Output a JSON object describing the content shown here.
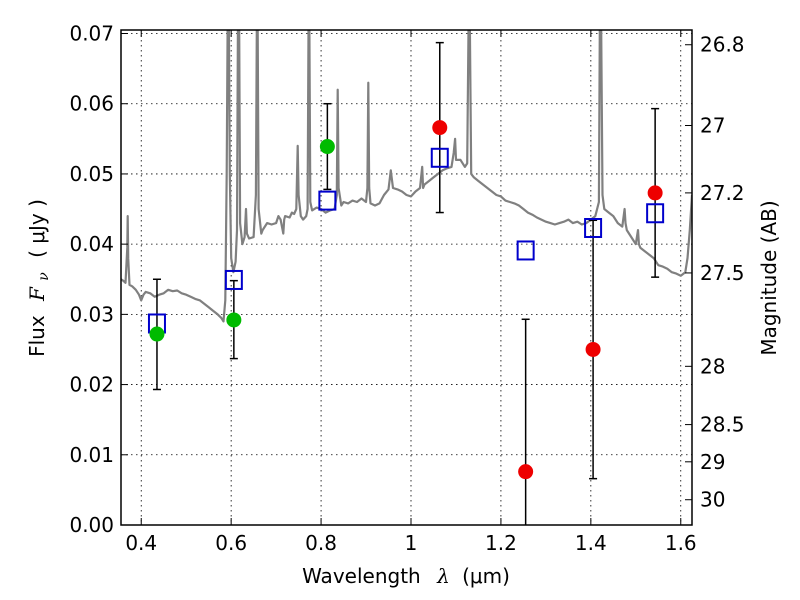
{
  "chart_data": {
    "type": "scatter",
    "title": "",
    "xlabel_text": "Wavelength",
    "xlabel_symbol": "λ",
    "xlabel_unit": "(μm)",
    "ylabel_text": "Flux",
    "ylabel_symbol": "F",
    "ylabel_sub": "ν",
    "ylabel_unit": "( μJy )",
    "y2label": "Magnitude (AB)",
    "xlim": [
      0.355,
      1.625
    ],
    "ylim": [
      0.0,
      0.0705
    ],
    "grid": true,
    "legend": "none",
    "x_ticks": [
      {
        "v": 0.4,
        "label": "0.4"
      },
      {
        "v": 0.6,
        "label": "0.6"
      },
      {
        "v": 0.8,
        "label": "0.8"
      },
      {
        "v": 1.0,
        "label": "1"
      },
      {
        "v": 1.2,
        "label": "1.2"
      },
      {
        "v": 1.4,
        "label": "1.4"
      },
      {
        "v": 1.6,
        "label": "1.6"
      }
    ],
    "y_ticks": [
      {
        "v": 0.0,
        "label": "0.00"
      },
      {
        "v": 0.01,
        "label": "0.01"
      },
      {
        "v": 0.02,
        "label": "0.02"
      },
      {
        "v": 0.03,
        "label": "0.03"
      },
      {
        "v": 0.04,
        "label": "0.04"
      },
      {
        "v": 0.05,
        "label": "0.05"
      },
      {
        "v": 0.06,
        "label": "0.06"
      },
      {
        "v": 0.07,
        "label": "0.07"
      }
    ],
    "mag_ticks": [
      {
        "label": "26.8",
        "flux": 0.0684
      },
      {
        "label": "27",
        "flux": 0.0569
      },
      {
        "label": "27.2",
        "flux": 0.0473
      },
      {
        "label": "27.5",
        "flux": 0.0359
      },
      {
        "label": "28",
        "flux": 0.0226
      },
      {
        "label": "28.5",
        "flux": 0.0143
      },
      {
        "label": "29",
        "flux": 0.009
      },
      {
        "label": "30",
        "flux": 0.0036
      }
    ],
    "template_spectrum": {
      "name": "template",
      "color": "#808080",
      "points": [
        [
          0.355,
          0.035
        ],
        [
          0.36,
          0.0348
        ],
        [
          0.365,
          0.0345
        ],
        [
          0.369,
          0.0395
        ],
        [
          0.37,
          0.044
        ],
        [
          0.371,
          0.038
        ],
        [
          0.374,
          0.0342
        ],
        [
          0.38,
          0.034
        ],
        [
          0.388,
          0.0335
        ],
        [
          0.395,
          0.0328
        ],
        [
          0.4,
          0.032
        ],
        [
          0.405,
          0.0328
        ],
        [
          0.41,
          0.0332
        ],
        [
          0.42,
          0.033
        ],
        [
          0.43,
          0.0325
        ],
        [
          0.44,
          0.0328
        ],
        [
          0.45,
          0.033
        ],
        [
          0.46,
          0.0335
        ],
        [
          0.47,
          0.0333
        ],
        [
          0.48,
          0.0334
        ],
        [
          0.49,
          0.033
        ],
        [
          0.5,
          0.0328
        ],
        [
          0.51,
          0.0325
        ],
        [
          0.52,
          0.0322
        ],
        [
          0.53,
          0.032
        ],
        [
          0.54,
          0.0315
        ],
        [
          0.55,
          0.031
        ],
        [
          0.56,
          0.0305
        ],
        [
          0.57,
          0.03
        ],
        [
          0.578,
          0.0295
        ],
        [
          0.583,
          0.029
        ],
        [
          0.587,
          0.032
        ],
        [
          0.59,
          0.05
        ],
        [
          0.592,
          0.0705
        ],
        [
          0.595,
          0.0705
        ],
        [
          0.597,
          0.05
        ],
        [
          0.6,
          0.038
        ],
        [
          0.605,
          0.036
        ],
        [
          0.61,
          0.0375
        ],
        [
          0.613,
          0.042
        ],
        [
          0.615,
          0.0705
        ],
        [
          0.618,
          0.0705
        ],
        [
          0.62,
          0.043
        ],
        [
          0.625,
          0.04
        ],
        [
          0.63,
          0.041
        ],
        [
          0.633,
          0.045
        ],
        [
          0.635,
          0.0415
        ],
        [
          0.64,
          0.0408
        ],
        [
          0.65,
          0.041
        ],
        [
          0.655,
          0.047
        ],
        [
          0.657,
          0.0705
        ],
        [
          0.659,
          0.0705
        ],
        [
          0.661,
          0.045
        ],
        [
          0.667,
          0.0415
        ],
        [
          0.67,
          0.042
        ],
        [
          0.68,
          0.043
        ],
        [
          0.69,
          0.0428
        ],
        [
          0.7,
          0.043
        ],
        [
          0.705,
          0.044
        ],
        [
          0.71,
          0.0435
        ],
        [
          0.716,
          0.0415
        ],
        [
          0.718,
          0.0435
        ],
        [
          0.72,
          0.044
        ],
        [
          0.73,
          0.0438
        ],
        [
          0.735,
          0.0445
        ],
        [
          0.74,
          0.0443
        ],
        [
          0.745,
          0.045
        ],
        [
          0.748,
          0.054
        ],
        [
          0.75,
          0.047
        ],
        [
          0.755,
          0.044
        ],
        [
          0.76,
          0.0435
        ],
        [
          0.767,
          0.044
        ],
        [
          0.77,
          0.045
        ],
        [
          0.772,
          0.0705
        ],
        [
          0.774,
          0.0705
        ],
        [
          0.776,
          0.046
        ],
        [
          0.78,
          0.0448
        ],
        [
          0.79,
          0.0452
        ],
        [
          0.8,
          0.045
        ],
        [
          0.81,
          0.0445
        ],
        [
          0.82,
          0.0448
        ],
        [
          0.83,
          0.045
        ],
        [
          0.835,
          0.047
        ],
        [
          0.837,
          0.062
        ],
        [
          0.839,
          0.048
        ],
        [
          0.845,
          0.0455
        ],
        [
          0.85,
          0.046
        ],
        [
          0.86,
          0.0458
        ],
        [
          0.87,
          0.0462
        ],
        [
          0.88,
          0.046
        ],
        [
          0.89,
          0.0465
        ],
        [
          0.9,
          0.046
        ],
        [
          0.903,
          0.048
        ],
        [
          0.905,
          0.063
        ],
        [
          0.907,
          0.048
        ],
        [
          0.91,
          0.0458
        ],
        [
          0.92,
          0.0455
        ],
        [
          0.93,
          0.0458
        ],
        [
          0.94,
          0.047
        ],
        [
          0.95,
          0.0478
        ],
        [
          0.955,
          0.0505
        ],
        [
          0.956,
          0.05
        ],
        [
          0.96,
          0.048
        ],
        [
          0.97,
          0.0478
        ],
        [
          0.98,
          0.0475
        ],
        [
          0.99,
          0.047
        ],
        [
          1.0,
          0.0468
        ],
        [
          1.01,
          0.0475
        ],
        [
          1.02,
          0.048
        ],
        [
          1.025,
          0.051
        ],
        [
          1.027,
          0.048
        ],
        [
          1.03,
          0.0485
        ],
        [
          1.04,
          0.049
        ],
        [
          1.05,
          0.0495
        ],
        [
          1.06,
          0.05
        ],
        [
          1.07,
          0.0505
        ],
        [
          1.08,
          0.0508
        ],
        [
          1.09,
          0.051
        ],
        [
          1.095,
          0.053
        ],
        [
          1.098,
          0.055
        ],
        [
          1.1,
          0.052
        ],
        [
          1.11,
          0.052
        ],
        [
          1.12,
          0.051
        ],
        [
          1.125,
          0.0515
        ],
        [
          1.128,
          0.0705
        ],
        [
          1.131,
          0.0705
        ],
        [
          1.134,
          0.05
        ],
        [
          1.14,
          0.0495
        ],
        [
          1.15,
          0.049
        ],
        [
          1.16,
          0.0485
        ],
        [
          1.17,
          0.048
        ],
        [
          1.18,
          0.0475
        ],
        [
          1.19,
          0.047
        ],
        [
          1.2,
          0.0468
        ],
        [
          1.21,
          0.0462
        ],
        [
          1.22,
          0.046
        ],
        [
          1.23,
          0.0458
        ],
        [
          1.24,
          0.0455
        ],
        [
          1.25,
          0.045
        ],
        [
          1.26,
          0.0445
        ],
        [
          1.27,
          0.0442
        ],
        [
          1.28,
          0.0438
        ],
        [
          1.29,
          0.0435
        ],
        [
          1.3,
          0.0432
        ],
        [
          1.31,
          0.043
        ],
        [
          1.32,
          0.0428
        ],
        [
          1.33,
          0.043
        ],
        [
          1.34,
          0.0432
        ],
        [
          1.35,
          0.0435
        ],
        [
          1.36,
          0.043
        ],
        [
          1.37,
          0.0432
        ],
        [
          1.38,
          0.0428
        ],
        [
          1.39,
          0.043
        ],
        [
          1.4,
          0.0435
        ],
        [
          1.41,
          0.044
        ],
        [
          1.418,
          0.046
        ],
        [
          1.42,
          0.0705
        ],
        [
          1.423,
          0.0705
        ],
        [
          1.426,
          0.047
        ],
        [
          1.43,
          0.045
        ],
        [
          1.44,
          0.0445
        ],
        [
          1.45,
          0.044
        ],
        [
          1.46,
          0.043
        ],
        [
          1.47,
          0.0425
        ],
        [
          1.475,
          0.045
        ],
        [
          1.477,
          0.043
        ],
        [
          1.48,
          0.042
        ],
        [
          1.49,
          0.041
        ],
        [
          1.5,
          0.04
        ],
        [
          1.505,
          0.042
        ],
        [
          1.507,
          0.04
        ],
        [
          1.51,
          0.0395
        ],
        [
          1.52,
          0.039
        ],
        [
          1.53,
          0.0385
        ],
        [
          1.54,
          0.038
        ],
        [
          1.55,
          0.037
        ],
        [
          1.56,
          0.0368
        ],
        [
          1.57,
          0.0365
        ],
        [
          1.58,
          0.036
        ],
        [
          1.59,
          0.0358
        ],
        [
          1.6,
          0.0355
        ],
        [
          1.61,
          0.036
        ],
        [
          1.615,
          0.038
        ],
        [
          1.62,
          0.042
        ],
        [
          1.625,
          0.047
        ]
      ]
    },
    "model_flux_squares": {
      "name": "model",
      "color": "#0000cc",
      "points": [
        {
          "x": 0.435,
          "y": 0.0287
        },
        {
          "x": 0.606,
          "y": 0.0349
        },
        {
          "x": 0.814,
          "y": 0.0462
        },
        {
          "x": 1.064,
          "y": 0.0523
        },
        {
          "x": 1.255,
          "y": 0.0391
        },
        {
          "x": 1.405,
          "y": 0.0423
        },
        {
          "x": 1.543,
          "y": 0.0444
        }
      ]
    },
    "observed_green": {
      "name": "detections",
      "color": "#00bb00",
      "points": [
        {
          "x": 0.435,
          "y": 0.0272,
          "lo": 0.0193,
          "hi": 0.035
        },
        {
          "x": 0.606,
          "y": 0.0292,
          "lo": 0.0237,
          "hi": 0.0348
        },
        {
          "x": 0.814,
          "y": 0.0539,
          "lo": 0.0478,
          "hi": 0.06
        }
      ]
    },
    "observed_red": {
      "name": "low-significance",
      "color": "#ee0000",
      "points": [
        {
          "x": 1.064,
          "y": 0.0566,
          "lo": 0.0445,
          "hi": 0.0687
        },
        {
          "x": 1.255,
          "y": 0.0076,
          "lo": null,
          "hi": 0.0293
        },
        {
          "x": 1.405,
          "y": 0.025,
          "lo": 0.0066,
          "hi": 0.0434
        },
        {
          "x": 1.543,
          "y": 0.0473,
          "lo": 0.0353,
          "hi": 0.0593
        }
      ]
    }
  }
}
